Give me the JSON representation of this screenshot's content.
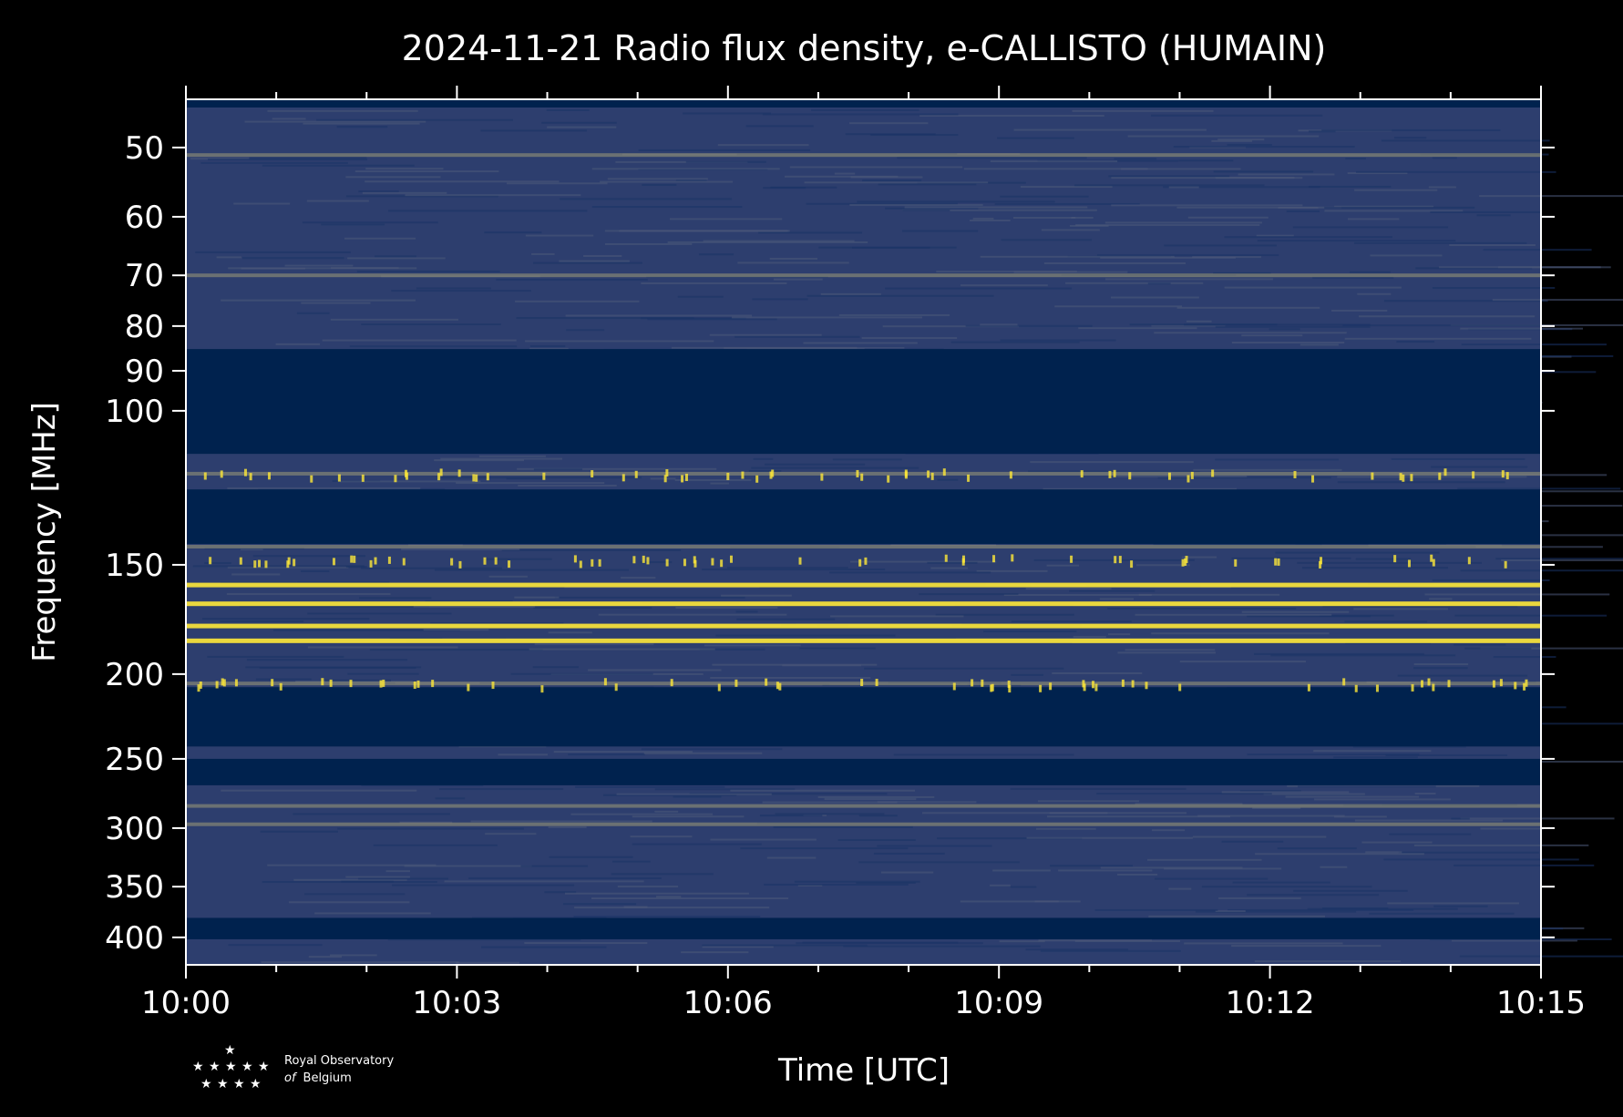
{
  "chart_data": {
    "type": "heatmap",
    "title": "2024-11-21 Radio flux density, e-CALLISTO (HUMAIN)",
    "xlabel": "Time [UTC]",
    "ylabel": "Frequency [MHz]",
    "x_range": [
      "10:00",
      "10:15"
    ],
    "x_ticks": [
      "10:00",
      "10:03",
      "10:06",
      "10:09",
      "10:12",
      "10:15"
    ],
    "y_scale": "log",
    "y_ticks": [
      50,
      60,
      70,
      80,
      90,
      100,
      150,
      200,
      250,
      300,
      350,
      400
    ],
    "y_range": [
      45,
      430
    ],
    "colormap": "cividis",
    "colors": {
      "background": "#000000",
      "low": "#00224e",
      "mid": "#7c7b78",
      "high": "#fee838"
    },
    "masked_bands_mhz": [
      [
        85,
        112
      ],
      [
        123,
        142
      ],
      [
        207,
        242
      ],
      [
        250,
        268
      ],
      [
        380,
        402
      ]
    ],
    "bright_bands_mhz": [
      51,
      70,
      118,
      143,
      158,
      166,
      176,
      183,
      205,
      283,
      297
    ],
    "grid": false
  },
  "logo": {
    "line1": "Royal Observatory",
    "line2_italic": "of",
    "line2": "Belgium"
  }
}
